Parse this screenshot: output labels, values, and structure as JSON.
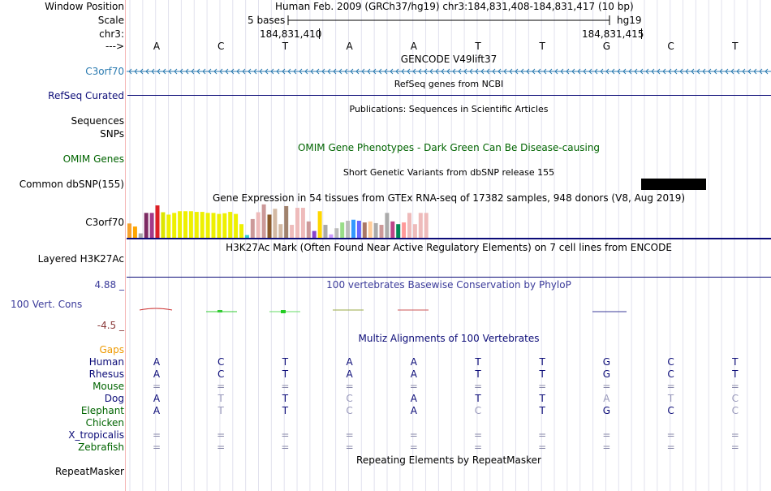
{
  "header": {
    "window_position_label": "Window Position",
    "window_position_text": "Human Feb. 2009 (GRCh37/hg19)   chr3:184,831,408-184,831,417 (10 bp)",
    "scale_label": "Scale",
    "scale_text": "5 bases",
    "scale_assembly": "hg19",
    "chrom_label": "chr3:",
    "coord_left": "184,831,410",
    "coord_right": "184,831,415",
    "strand_label": "--->"
  },
  "bases": [
    "A",
    "C",
    "T",
    "A",
    "A",
    "T",
    "T",
    "G",
    "C",
    "T"
  ],
  "tracks": {
    "gencode": {
      "title": "GENCODE V49lift37",
      "label": "C3orf70",
      "color": "#2a7ab0"
    },
    "refseq": {
      "title": "RefSeq genes from NCBI",
      "label": "RefSeq Curated",
      "color": "#0c0c78"
    },
    "publications": {
      "title": "Publications: Sequences in Scientific Articles",
      "label1": "Sequences",
      "label2": "SNPs"
    },
    "omim": {
      "title": "OMIM Gene Phenotypes - Dark Green Can Be Disease-causing",
      "label": "OMIM Genes",
      "color": "#006400"
    },
    "dbsnp": {
      "title": "Short Genetic Variants from dbSNP release 155",
      "label": "Common dbSNP(155)"
    },
    "gtex": {
      "title": "Gene Expression in 54 tissues from GTEx RNA-seq of 17382 samples, 948 donors (V8, Aug 2019)",
      "label": "C3orf70",
      "values": [
        0.42,
        0.33,
        0.13,
        0.73,
        0.73,
        0.95,
        0.75,
        0.68,
        0.73,
        0.78,
        0.78,
        0.78,
        0.76,
        0.76,
        0.73,
        0.73,
        0.7,
        0.72,
        0.76,
        0.7,
        0.4,
        0.08,
        0.55,
        0.75,
        0.98,
        0.68,
        0.85,
        0.4,
        0.93,
        0.38,
        0.88,
        0.88,
        0.48,
        0.2,
        0.78,
        0.38,
        0.1,
        0.28,
        0.45,
        0.5,
        0.53,
        0.5,
        0.45,
        0.48,
        0.43,
        0.38,
        0.73,
        0.48,
        0.4,
        0.45,
        0.73,
        0.4,
        0.73,
        0.73
      ],
      "colors": [
        "#f7a22d",
        "#ffa500",
        "#aaaaaa",
        "#7c2a63",
        "#a23a8a",
        "#dd1f26",
        "#dde500",
        "#eef000",
        "#eef000",
        "#eef000",
        "#eef000",
        "#eef000",
        "#eef000",
        "#eef000",
        "#eef000",
        "#eef000",
        "#eef000",
        "#eef000",
        "#eef000",
        "#eef000",
        "#eef000",
        "#33cccc",
        "#cc9999",
        "#eebbbb",
        "#cc9999",
        "#8b5a2b",
        "#d3b9a3",
        "#d3b9a3",
        "#a0826d",
        "#eebbbb",
        "#eebbbb",
        "#eebbbb",
        "#cc9999",
        "#8844cc",
        "#ffd700",
        "#aaaaaa",
        "#cc99ff",
        "#bbbbbb",
        "#99dd88",
        "#bbbbbb",
        "#3399ff",
        "#6666ff",
        "#aa7766",
        "#ffcc99",
        "#aaaaaa",
        "#cc9999",
        "#aaaaaa",
        "#bb4488",
        "#008855",
        "#ff9999",
        "#eebbbb",
        "#eebbbb",
        "#eebbbb",
        "#eebbbb"
      ]
    },
    "h3k27ac": {
      "title": "H3K27Ac Mark (Often Found Near Active Regulatory Elements) on 7 cell lines from ENCODE",
      "label": "Layered H3K27Ac"
    },
    "phylop": {
      "title": "100 vertebrates Basewise Conservation by PhyloP",
      "label": "100 Vert. Cons",
      "max": "4.88 _",
      "min": "-4.5 _",
      "color": "#3b3b9a",
      "neg_color": "#8b3a3a"
    },
    "multiz": {
      "title": "Multiz Alignments of 100 Vertebrates",
      "gaps_label": "Gaps",
      "species": [
        {
          "name": "Human",
          "color": "#0c0c78",
          "bases": [
            "A",
            "C",
            "T",
            "A",
            "A",
            "T",
            "T",
            "G",
            "C",
            "T"
          ]
        },
        {
          "name": "Rhesus",
          "color": "#0c0c78",
          "bases": [
            "A",
            "C",
            "T",
            "A",
            "A",
            "T",
            "T",
            "G",
            "C",
            "T"
          ]
        },
        {
          "name": "Mouse",
          "color": "#006400",
          "bases": [
            "=",
            "=",
            "=",
            "=",
            "=",
            "=",
            "=",
            "=",
            "=",
            "="
          ]
        },
        {
          "name": "Dog",
          "color": "#0c0c78",
          "bases": [
            "A",
            "T",
            "T",
            "C",
            "A",
            "T",
            "T",
            "A",
            "T",
            "C"
          ]
        },
        {
          "name": "Elephant",
          "color": "#006400",
          "bases": [
            "A",
            "T",
            "T",
            "C",
            "A",
            "C",
            "T",
            "G",
            "C",
            "C"
          ]
        },
        {
          "name": "Chicken",
          "color": "#006400",
          "bases": [
            "",
            "",
            "",
            "",
            "",
            "",
            "",
            "",
            "",
            ""
          ]
        },
        {
          "name": "X_tropicalis",
          "color": "#0c0c78",
          "bases": [
            "=",
            "=",
            "=",
            "=",
            "=",
            "=",
            "=",
            "=",
            "=",
            "="
          ]
        },
        {
          "name": "Zebrafish",
          "color": "#006400",
          "bases": [
            "=",
            "=",
            "=",
            "=",
            "=",
            "=",
            "=",
            "=",
            "=",
            "="
          ]
        }
      ]
    },
    "repeatmasker": {
      "title": "Repeating Elements by RepeatMasker",
      "label": "RepeatMasker"
    }
  }
}
